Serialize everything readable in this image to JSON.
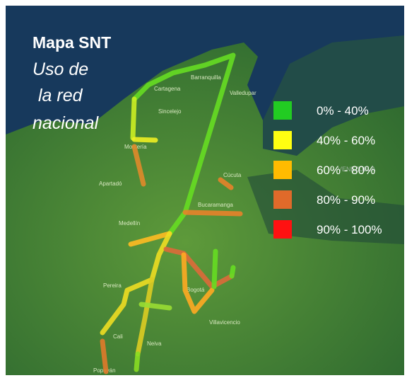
{
  "title": "Mapa SNT",
  "subtitle_lines": [
    "Uso de",
    "la red",
    "nacional"
  ],
  "legend": [
    {
      "label": "0% - 40%",
      "color": "#22cc22"
    },
    {
      "label": "40% - 60%",
      "color": "#ffff11"
    },
    {
      "label": "60% - 80%",
      "color": "#ffbb00"
    },
    {
      "label": "80% - 90%",
      "color": "#e06a2a"
    },
    {
      "label": "90% - 100%",
      "color": "#ff1111"
    }
  ],
  "cities": [
    "Barranquilla",
    "Cartagena",
    "Valledupar",
    "Sincelejo",
    "Montería",
    "Apartadó",
    "Cúcuta",
    "Bucaramanga",
    "Medellín",
    "Pereira",
    "Bogotá",
    "Villavicencio",
    "Cali",
    "Neiva",
    "Popayán",
    "VENEZUELA"
  ]
}
